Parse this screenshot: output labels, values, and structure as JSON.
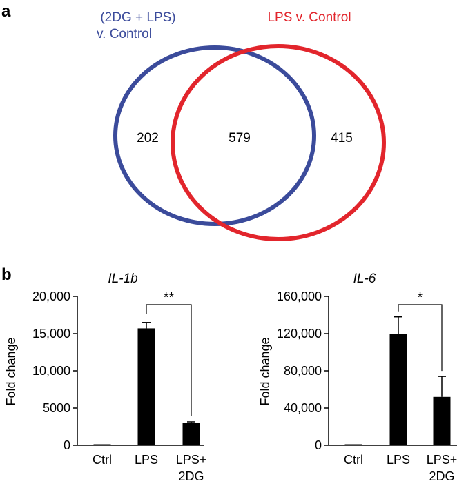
{
  "panel_a_label": "a",
  "panel_b_label": "b",
  "venn": {
    "left": {
      "label_line1": "(2DG + LPS)",
      "label_line2": "v. Control",
      "color": "#3b4b9b"
    },
    "right": {
      "label": "LPS v. Control",
      "color": "#e2252c"
    },
    "counts": {
      "left_only": "202",
      "both": "579",
      "right_only": "415"
    }
  },
  "chart_data": [
    {
      "type": "bar",
      "title": "IL-1b",
      "ylabel": "Fold change",
      "xlabel": "",
      "categories": [
        {
          "line1": "Ctrl",
          "line2": ""
        },
        {
          "line1": "LPS",
          "line2": ""
        },
        {
          "line1": "LPS+",
          "line2": "2DG"
        }
      ],
      "values": [
        30,
        15700,
        3050
      ],
      "errors": [
        0,
        800,
        100
      ],
      "ylim": [
        0,
        20000
      ],
      "yticks": [
        0,
        5000,
        10000,
        15000,
        20000
      ],
      "ytick_labels": [
        "0",
        "5000",
        "10,000",
        "15,000",
        "20,000"
      ],
      "significance": {
        "from": 1,
        "to": 2,
        "label": "**"
      }
    },
    {
      "type": "bar",
      "title": "IL-6",
      "ylabel": "Fold change",
      "xlabel": "",
      "categories": [
        {
          "line1": "Ctrl",
          "line2": ""
        },
        {
          "line1": "LPS",
          "line2": ""
        },
        {
          "line1": "LPS+",
          "line2": "2DG"
        }
      ],
      "values": [
        0,
        120000,
        52000
      ],
      "errors": [
        0,
        18000,
        22000
      ],
      "ylim": [
        0,
        160000
      ],
      "yticks": [
        0,
        40000,
        80000,
        120000,
        160000
      ],
      "ytick_labels": [
        "0",
        "40,000",
        "80,000",
        "120,000",
        "160,000"
      ],
      "significance": {
        "from": 1,
        "to": 2,
        "label": "*"
      }
    }
  ]
}
